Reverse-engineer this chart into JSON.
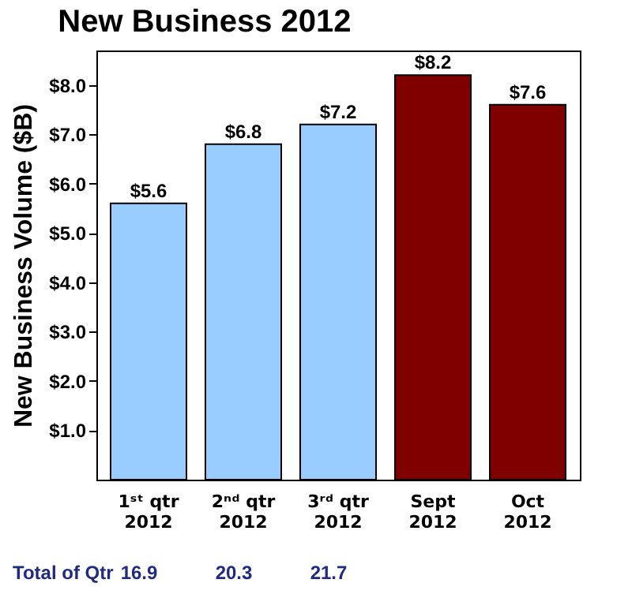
{
  "chart_data": {
    "type": "bar",
    "title": "New Business 2012",
    "ylabel": "New Business Volume ($B)",
    "categories": [
      "1ˢᵗ qtr 2012",
      "2ⁿᵈ qtr 2012",
      "3ʳᵈ qtr 2012",
      "Sept 2012",
      "Oct 2012"
    ],
    "values": [
      5.6,
      6.8,
      7.2,
      8.2,
      7.6
    ],
    "colors": [
      "#99ccff",
      "#99ccff",
      "#99ccff",
      "#800000",
      "#800000"
    ],
    "value_labels": [
      "$5.6",
      "$6.8",
      "$7.2",
      "$8.2",
      "$7.6"
    ],
    "ylim": [
      0,
      8.7
    ],
    "yticks": [
      {
        "value": 1,
        "label": "$1.0"
      },
      {
        "value": 2,
        "label": "$2.0"
      },
      {
        "value": 3,
        "label": "$3.0"
      },
      {
        "value": 4,
        "label": "$4.0"
      },
      {
        "value": 5,
        "label": "$5.0"
      },
      {
        "value": 6,
        "label": "$6.0"
      },
      {
        "value": 7,
        "label": "$7.0"
      },
      {
        "value": 8,
        "label": "$8.0"
      }
    ],
    "annotations": [
      "Total of Qtr",
      "16.9",
      "20.3",
      "21.7"
    ],
    "grid": false
  }
}
